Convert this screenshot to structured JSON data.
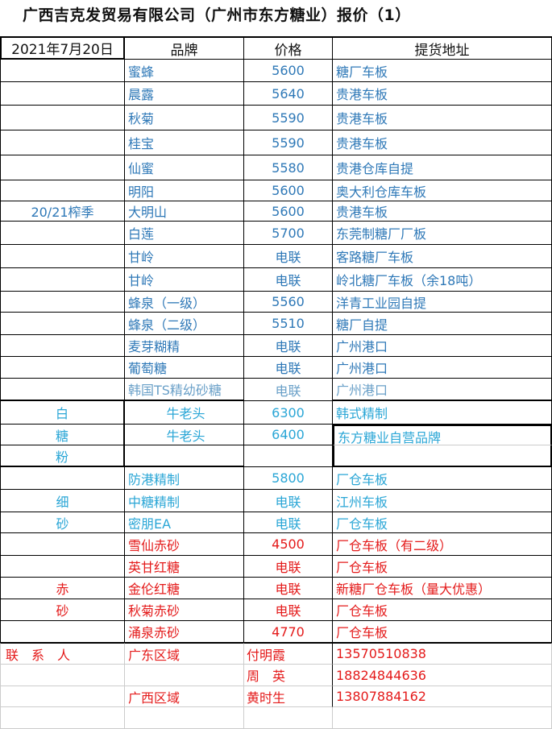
{
  "title": "广西吉克发贸易有限公司（广州市东方糖业）报价（1）",
  "header": {
    "date": "2021年7月20日",
    "brand": "品牌",
    "price": "价格",
    "address": "提货地址"
  },
  "colors": {
    "blue": "#2e78b7",
    "cyan": "#2aa6d6",
    "red": "#e41a1a"
  },
  "rows": [
    {
      "category": "",
      "brand": "蜜蜂",
      "price": "5600",
      "address": "糖厂车板",
      "color": "blue"
    },
    {
      "category": "",
      "brand": "晨露",
      "price": "5640",
      "address": "贵港车板",
      "color": "blue"
    },
    {
      "category": "",
      "brand": "秋菊",
      "price": "5590",
      "address": "贵港车板",
      "color": "blue"
    },
    {
      "category": "",
      "brand": "桂宝",
      "price": "5590",
      "address": "贵港车板",
      "color": "blue"
    },
    {
      "category": "",
      "brand": "仙蜜",
      "price": "5580",
      "address": "贵港仓库自提",
      "color": "blue"
    },
    {
      "category": "",
      "brand": "明阳",
      "price": "5600",
      "address": "奥大利仓库车板",
      "color": "blue"
    },
    {
      "category": "20/21榨季",
      "brand": "大明山",
      "price": "5600",
      "address": "贵港车板",
      "color": "blue"
    },
    {
      "category": "",
      "brand": "白莲",
      "price": "5700",
      "address": "东莞制糖厂厂板",
      "color": "blue"
    },
    {
      "category": "",
      "brand": "甘岭",
      "price": "电联",
      "address": "客路糖厂车板",
      "color": "blue"
    },
    {
      "category": "",
      "brand": "甘岭",
      "price": "电联",
      "address": "岭北糖厂车板（余18吨）",
      "color": "blue"
    },
    {
      "category": "",
      "brand": "蜂泉（一级）",
      "price": "5560",
      "address": "洋青工业园自提",
      "color": "blue"
    },
    {
      "category": "",
      "brand": "蜂泉（二级）",
      "price": "5510",
      "address": "糖厂自提",
      "color": "blue"
    },
    {
      "category": "",
      "brand": "麦芽糊精",
      "price": "电联",
      "address": "广州港口",
      "color": "blue"
    },
    {
      "category": "",
      "brand": "葡萄糖",
      "price": "电联",
      "address": "广州港口",
      "color": "blue"
    },
    {
      "category": "",
      "brand": "韩国TS精幼砂糖",
      "price": "电联",
      "address": "广州港口",
      "color": "gray"
    },
    {
      "category": "白",
      "brand": "牛老头",
      "price": "6300",
      "address": "韩式精制",
      "color": "cyan"
    },
    {
      "category": "糖",
      "brand": "牛老头",
      "price": "6400",
      "address": "东方糖业自营品牌",
      "color": "cyan"
    },
    {
      "category": "粉",
      "brand": "",
      "price": "",
      "address": "",
      "color": "cyan"
    },
    {
      "category": "",
      "brand": "防港精制",
      "price": "5800",
      "address": "厂仓车板",
      "color": "cyan"
    },
    {
      "category": "细",
      "brand": "中糖精制",
      "price": "电联",
      "address": "江州车板",
      "color": "cyan"
    },
    {
      "category": "砂",
      "brand": "密朋EA",
      "price": "电联",
      "address": "厂仓车板",
      "color": "cyan"
    },
    {
      "category": "",
      "brand": "雪仙赤砂",
      "price": "4500",
      "address": "厂仓车板（有二级）",
      "color": "red"
    },
    {
      "category": "",
      "brand": "英甘红糖",
      "price": "电联",
      "address": "厂仓车板",
      "color": "red"
    },
    {
      "category": "赤",
      "brand": "金伦红糖",
      "price": "电联",
      "address": "新糖厂仓车板（量大优惠）",
      "color": "red"
    },
    {
      "category": "砂",
      "brand": "秋菊赤砂",
      "price": "电联",
      "address": "厂仓车板",
      "color": "red"
    },
    {
      "category": "",
      "brand": "涌泉赤砂",
      "price": "4770",
      "address": "厂仓车板",
      "color": "red"
    }
  ],
  "contacts": [
    {
      "label": "联　系　人",
      "region": "广东区域",
      "name": "付明霞",
      "phone": "13570510838"
    },
    {
      "label": "",
      "region": "",
      "name": "周　英",
      "phone": "18824844636"
    },
    {
      "label": "",
      "region": "广西区域",
      "name": "黄时生",
      "phone": "13807884162"
    },
    {
      "label": "",
      "region": "",
      "name": "",
      "phone": ""
    }
  ]
}
